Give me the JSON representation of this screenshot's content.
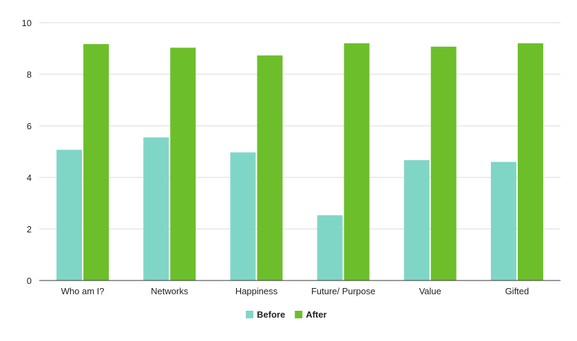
{
  "chart_data": {
    "type": "bar",
    "title": "",
    "xlabel": "",
    "ylabel": "",
    "categories": [
      "Who am I?",
      "Networks",
      "Happiness",
      "Future/ Purpose",
      "Value",
      "Gifted"
    ],
    "series": [
      {
        "name": "Before",
        "color": "#80d6c6",
        "values": [
          5.07,
          5.55,
          4.97,
          2.53,
          4.67,
          4.6
        ]
      },
      {
        "name": "After",
        "color": "#6cbf2a",
        "values": [
          9.17,
          9.03,
          8.73,
          9.2,
          9.07,
          9.2
        ]
      }
    ],
    "yticks": [
      "0",
      "2",
      "4",
      "6",
      "8",
      "10"
    ],
    "ylim": [
      0,
      10
    ],
    "grid": true,
    "legend_position": "bottom"
  }
}
